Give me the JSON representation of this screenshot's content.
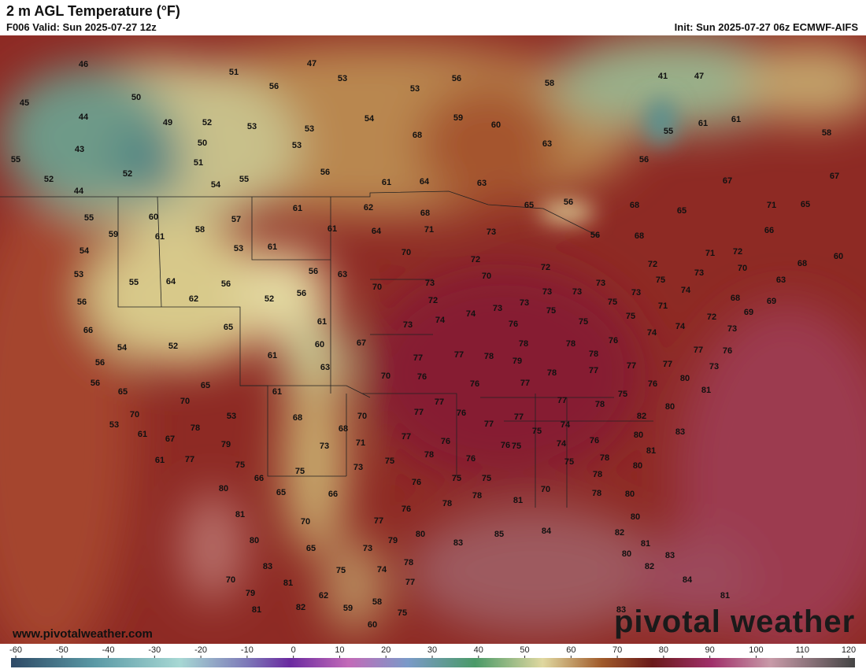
{
  "header": {
    "title": "2 m AGL Temperature (°F)",
    "valid": "F006 Valid: Sun 2025-07-27 12z",
    "init": "Init: Sun 2025-07-27 06z ECMWF-AIFS"
  },
  "watermark": "www.pivotalweather.com",
  "logo": "pivotal weather",
  "colorbar": {
    "ticks": [
      -60,
      -50,
      -40,
      -30,
      -20,
      -10,
      0,
      10,
      20,
      30,
      40,
      50,
      60,
      70,
      80,
      90,
      100,
      110,
      120
    ]
  },
  "labels": [
    46,
    51,
    47,
    53,
    56,
    58,
    41,
    47,
    45,
    50,
    56,
    53,
    44,
    49,
    52,
    53,
    53,
    54,
    59,
    60,
    61,
    61,
    55,
    58,
    43,
    50,
    53,
    68,
    63,
    55,
    52,
    51,
    56,
    56,
    67,
    52,
    44,
    54,
    55,
    61,
    64,
    63,
    67,
    55,
    60,
    57,
    61,
    62,
    68,
    65,
    56,
    68,
    65,
    71,
    65,
    59,
    61,
    58,
    61,
    64,
    71,
    73,
    56,
    68,
    66,
    54,
    53,
    61,
    70,
    72,
    71,
    72,
    68,
    60,
    53,
    55,
    64,
    56,
    52,
    56,
    56,
    63,
    70,
    73,
    70,
    72,
    73,
    73,
    73,
    72,
    73,
    75,
    73,
    70,
    63,
    56,
    62,
    72,
    73,
    75,
    75,
    71,
    74,
    68,
    69,
    66,
    65,
    61,
    73,
    74,
    74,
    73,
    76,
    75,
    75,
    74,
    72,
    69,
    73,
    54,
    52,
    60,
    67,
    77,
    77,
    78,
    78,
    78,
    78,
    76,
    74,
    77,
    76,
    56,
    61,
    63,
    70,
    76,
    79,
    78,
    77,
    77,
    77,
    73,
    56,
    65,
    76,
    77,
    80,
    81,
    65,
    70,
    61,
    77,
    75,
    78,
    76,
    70,
    53,
    68,
    70,
    77,
    77,
    76,
    77,
    80,
    53,
    78,
    68,
    77,
    75,
    74,
    76,
    82,
    83,
    80,
    61,
    67,
    79,
    73,
    71,
    77,
    76,
    75,
    74,
    61,
    77,
    75,
    73,
    75,
    78,
    76,
    76,
    78,
    75,
    81,
    66,
    75,
    76,
    75,
    75,
    78,
    80,
    80,
    65,
    66,
    70,
    81,
    78,
    78,
    78,
    80,
    81,
    76,
    77,
    80,
    70,
    80,
    83,
    85,
    84,
    82,
    80,
    79,
    65,
    73,
    81,
    80,
    83,
    83,
    78,
    75,
    74,
    82,
    84,
    70,
    79,
    81,
    77,
    62,
    58,
    59,
    75,
    81,
    81,
    82,
    83,
    60
  ]
}
